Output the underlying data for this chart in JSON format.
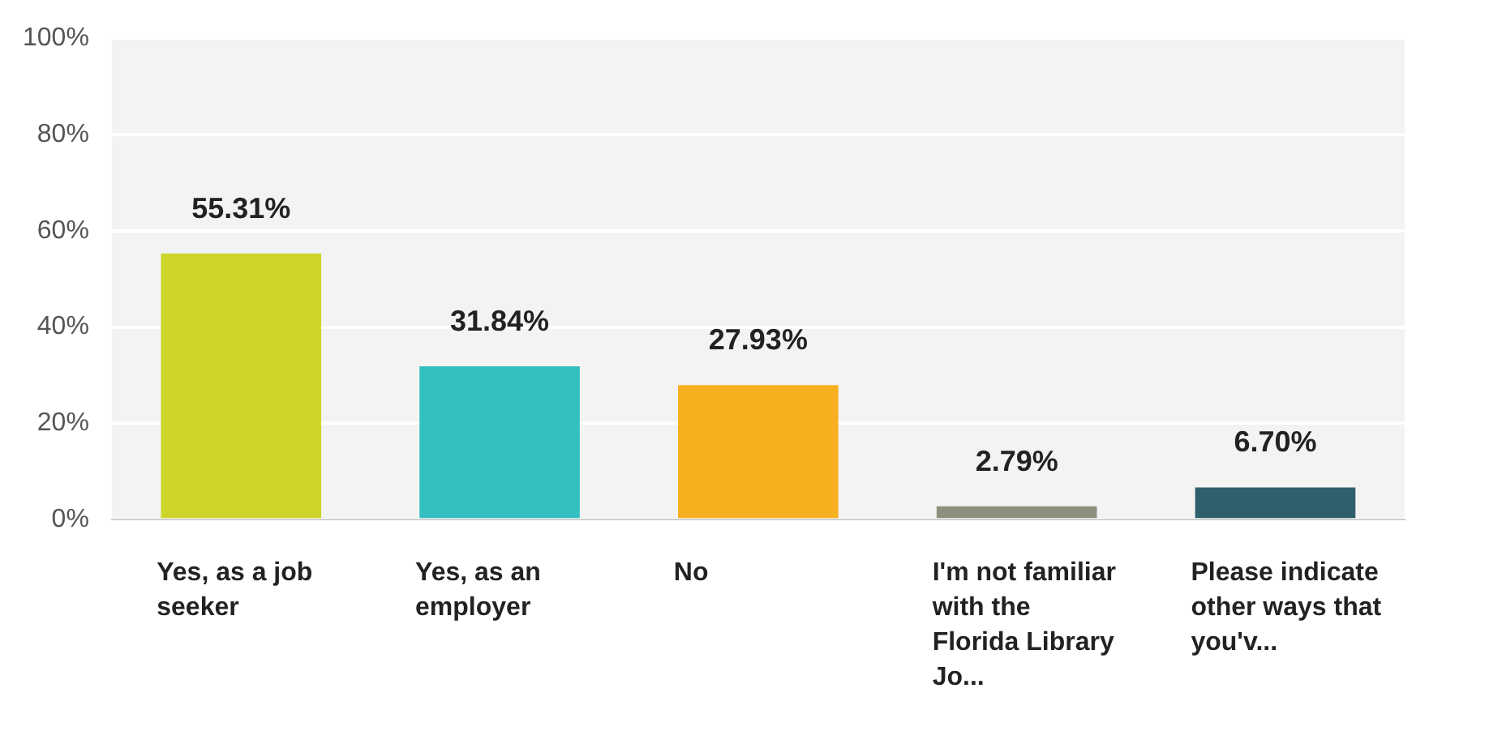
{
  "chart_data": {
    "type": "bar",
    "categories": [
      "Yes, as a job seeker",
      "Yes, as an employer",
      "No",
      "I'm not familiar with the Florida Library Jo...",
      "Please indicate other ways that you'v..."
    ],
    "values": [
      55.31,
      31.84,
      27.93,
      2.79,
      6.7
    ],
    "colors": [
      "#cdd52a",
      "#34bfc0",
      "#f6b01f",
      "#8c8f7c",
      "#2e5f6c"
    ],
    "value_labels": [
      "55.31%",
      "31.84%",
      "27.93%",
      "2.79%",
      "6.70%"
    ],
    "ylim": [
      0,
      100
    ],
    "yticks": [
      {
        "value": 0,
        "label": "0%"
      },
      {
        "value": 20,
        "label": "20%"
      },
      {
        "value": 40,
        "label": "40%"
      },
      {
        "value": 60,
        "label": "60%"
      },
      {
        "value": 80,
        "label": "80%"
      },
      {
        "value": 100,
        "label": "100%"
      }
    ],
    "grid": "y",
    "legend": false
  }
}
